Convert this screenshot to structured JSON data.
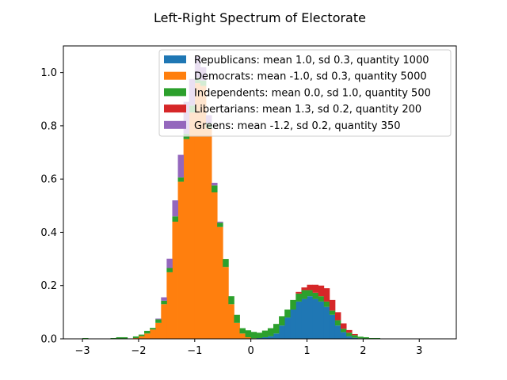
{
  "chart_data": {
    "type": "bar",
    "title": "Left-Right Spectrum of Electorate",
    "xlabel": "",
    "ylabel": "",
    "xlim": [
      -3.34,
      3.66
    ],
    "ylim": [
      0,
      1.1
    ],
    "xticks": [
      -3,
      -2,
      -1,
      0,
      1,
      2,
      3
    ],
    "yticks": [
      0.0,
      0.2,
      0.4,
      0.6,
      0.8,
      1.0
    ],
    "ytick_labels": [
      "0.0",
      "0.2",
      "0.4",
      "0.6",
      "0.8",
      "1.0"
    ],
    "grid": false,
    "legend": "top-right",
    "stacked": true,
    "bin_width": 0.1,
    "bin_start": [
      -3.0,
      -2.9,
      -2.8,
      -2.7,
      -2.6,
      -2.5,
      -2.4,
      -2.3,
      -2.2,
      -2.1,
      -2.0,
      -1.9,
      -1.8,
      -1.7,
      -1.6,
      -1.5,
      -1.4,
      -1.3,
      -1.2,
      -1.1,
      -1.0,
      -0.9,
      -0.8,
      -0.7,
      -0.6,
      -0.5,
      -0.4,
      -0.3,
      -0.2,
      -0.1,
      0.0,
      0.1,
      0.2,
      0.3,
      0.4,
      0.5,
      0.6,
      0.7,
      0.8,
      0.9,
      1.0,
      1.1,
      1.2,
      1.3,
      1.4,
      1.5,
      1.6,
      1.7,
      1.8,
      1.9,
      2.0,
      2.1,
      2.2,
      2.3,
      2.4,
      2.5,
      2.6,
      2.7,
      2.8,
      2.9,
      3.0,
      3.1,
      3.2,
      3.3
    ],
    "series": [
      {
        "name": "Republicans: mean 1.0, sd 0.3, quantity 1000",
        "color": "#1f77b4",
        "values": [
          0,
          0,
          0,
          0,
          0,
          0,
          0,
          0,
          0,
          0,
          0,
          0,
          0,
          0,
          0,
          0,
          0,
          0,
          0,
          0,
          0,
          0,
          0,
          0,
          0,
          0,
          0,
          0,
          0,
          0,
          0,
          0.003,
          0.006,
          0.01,
          0.02,
          0.05,
          0.08,
          0.11,
          0.14,
          0.15,
          0.16,
          0.15,
          0.14,
          0.12,
          0.09,
          0.05,
          0.025,
          0.01,
          0.004,
          0.002,
          0,
          0,
          0,
          0,
          0,
          0,
          0,
          0,
          0,
          0,
          0,
          0,
          0,
          0
        ]
      },
      {
        "name": "Democrats: mean -1.0, sd 0.3, quantity 5000",
        "color": "#ff7f0e",
        "values": [
          0,
          0,
          0,
          0,
          0,
          0,
          0,
          0,
          0,
          0.003,
          0.01,
          0.02,
          0.035,
          0.06,
          0.13,
          0.25,
          0.44,
          0.59,
          0.75,
          0.85,
          0.96,
          0.95,
          0.79,
          0.55,
          0.42,
          0.27,
          0.13,
          0.06,
          0.02,
          0.006,
          0.002,
          0,
          0,
          0,
          0,
          0,
          0,
          0,
          0,
          0,
          0,
          0,
          0,
          0,
          0,
          0,
          0,
          0,
          0,
          0,
          0,
          0,
          0,
          0,
          0,
          0,
          0,
          0,
          0,
          0,
          0,
          0,
          0,
          0
        ]
      },
      {
        "name": "Independents: mean 0.0, sd 1.0, quantity 500",
        "color": "#2ca02c",
        "values": [
          0.003,
          0,
          0,
          0,
          0,
          0.003,
          0.006,
          0.006,
          0,
          0.006,
          0.006,
          0.01,
          0.006,
          0.013,
          0.013,
          0.016,
          0.02,
          0.016,
          0.02,
          0.026,
          0.02,
          0.02,
          0.02,
          0.026,
          0.016,
          0.03,
          0.03,
          0.03,
          0.02,
          0.026,
          0.024,
          0.02,
          0.025,
          0.03,
          0.036,
          0.035,
          0.03,
          0.036,
          0.03,
          0.033,
          0.023,
          0.023,
          0.02,
          0.02,
          0.016,
          0.02,
          0.013,
          0.013,
          0.01,
          0.006,
          0.006,
          0.003,
          0.003,
          0,
          0,
          0,
          0,
          0,
          0,
          0,
          0,
          0,
          0,
          0
        ]
      },
      {
        "name": "Libertarians: mean 1.3, sd 0.2, quantity 200",
        "color": "#d62728",
        "values": [
          0,
          0,
          0,
          0,
          0,
          0,
          0,
          0,
          0,
          0,
          0,
          0,
          0,
          0,
          0,
          0,
          0,
          0,
          0,
          0,
          0,
          0,
          0,
          0,
          0,
          0,
          0,
          0,
          0,
          0,
          0,
          0,
          0,
          0,
          0,
          0,
          0,
          0,
          0.006,
          0.01,
          0.02,
          0.03,
          0.04,
          0.05,
          0.04,
          0.03,
          0.02,
          0.01,
          0.004,
          0,
          0,
          0,
          0,
          0,
          0,
          0,
          0,
          0,
          0,
          0,
          0,
          0,
          0,
          0
        ]
      },
      {
        "name": "Greens: mean -1.2, sd 0.2, quantity 350",
        "color": "#9467bd",
        "values": [
          0,
          0,
          0,
          0,
          0,
          0,
          0,
          0,
          0,
          0,
          0,
          0,
          0,
          0.003,
          0.013,
          0.035,
          0.06,
          0.085,
          0.12,
          0.1,
          0.08,
          0.05,
          0.03,
          0.01,
          0.004,
          0,
          0,
          0,
          0,
          0,
          0,
          0,
          0,
          0,
          0,
          0,
          0,
          0,
          0,
          0,
          0,
          0,
          0,
          0,
          0,
          0,
          0,
          0,
          0,
          0,
          0,
          0,
          0,
          0,
          0,
          0,
          0,
          0,
          0,
          0,
          0,
          0,
          0,
          0
        ]
      }
    ]
  }
}
